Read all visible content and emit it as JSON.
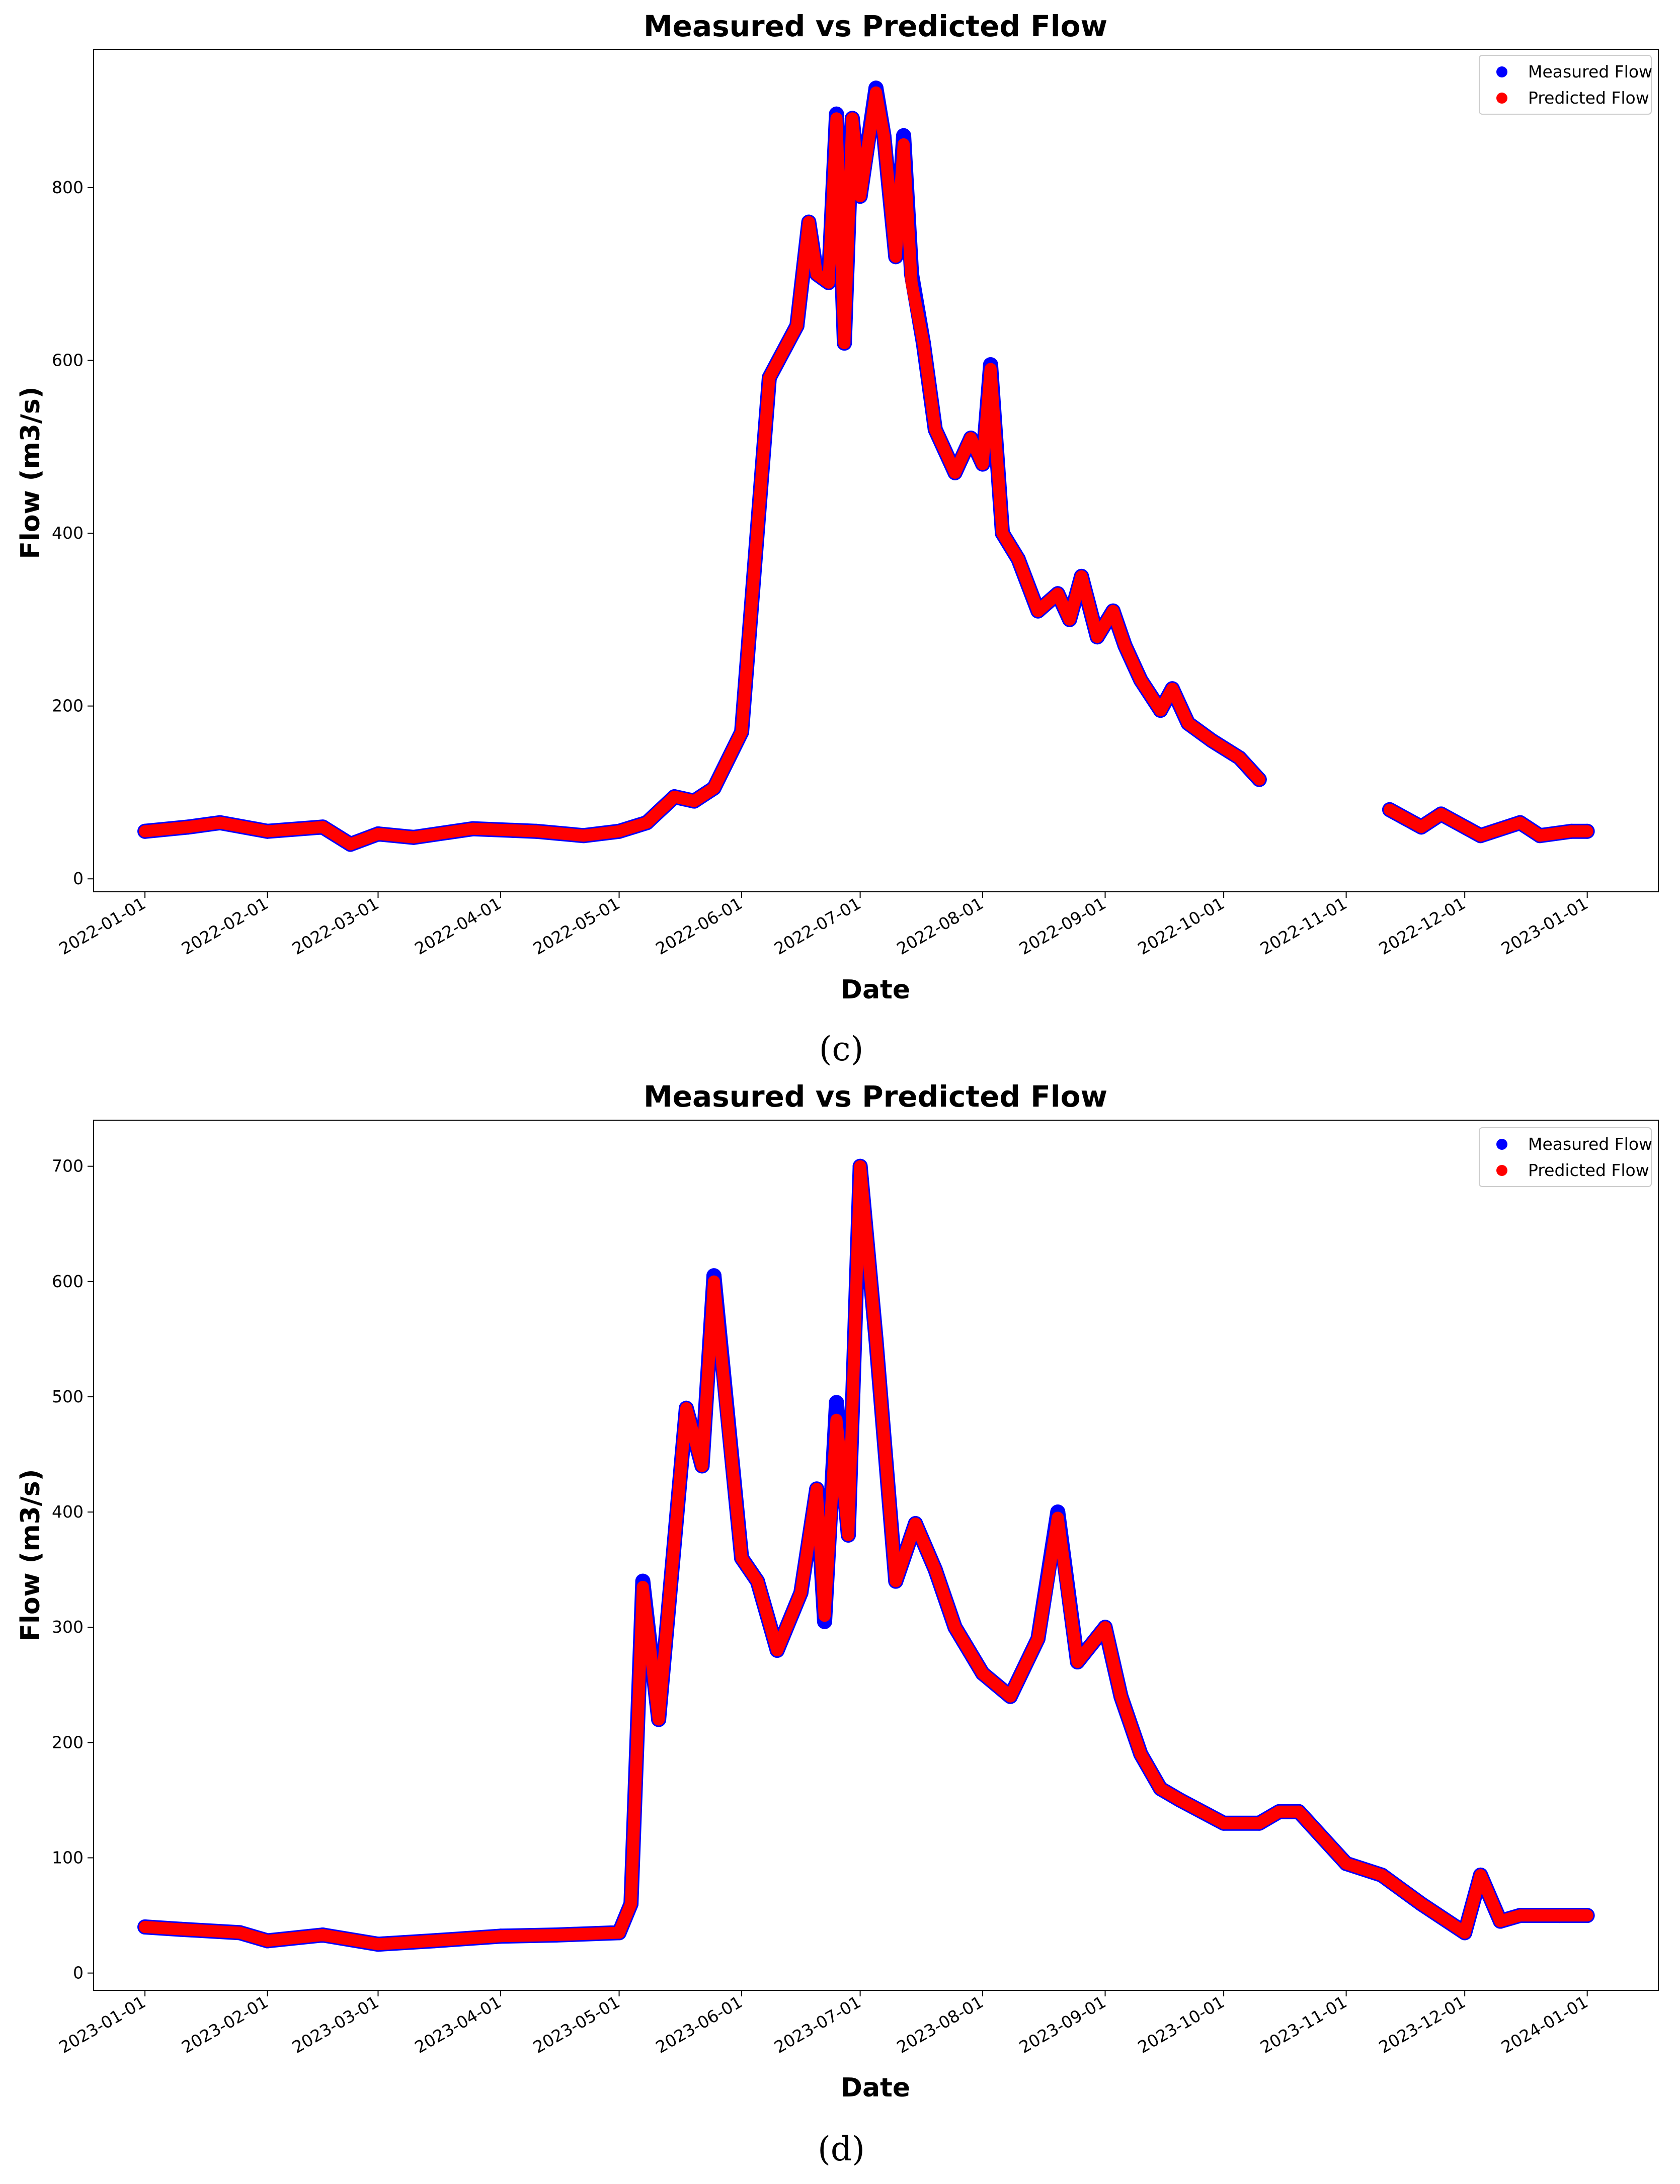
{
  "figure": {
    "panels": [
      {
        "caption": "(c)"
      },
      {
        "caption": "(d)"
      }
    ]
  },
  "colors": {
    "measured": "#0000ff",
    "predicted": "#ff0000"
  },
  "chart_data": [
    {
      "type": "scatter",
      "title": "Measured vs Predicted Flow",
      "xlabel": "Date",
      "ylabel": "Flow (m3/s)",
      "x_range": [
        "2021-12-19",
        "2023-01-19"
      ],
      "ylim": [
        -15,
        960
      ],
      "yticks": [
        0,
        200,
        400,
        600,
        800
      ],
      "xticks": [
        "2022-01-01",
        "2022-02-01",
        "2022-03-01",
        "2022-04-01",
        "2022-05-01",
        "2022-06-01",
        "2022-07-01",
        "2022-08-01",
        "2022-09-01",
        "2022-10-01",
        "2022-11-01",
        "2022-12-01",
        "2023-01-01"
      ],
      "legend": {
        "placement": "top-right",
        "entries": [
          "Measured Flow",
          "Predicted Flow"
        ]
      },
      "grid": false,
      "series": [
        {
          "name": "Measured Flow",
          "segments": [
            {
              "x": [
                "2022-01-01",
                "2022-01-12",
                "2022-01-20",
                "2022-02-01",
                "2022-02-15",
                "2022-02-22",
                "2022-03-01",
                "2022-03-10",
                "2022-03-25",
                "2022-04-10",
                "2022-04-22",
                "2022-05-01",
                "2022-05-08",
                "2022-05-15",
                "2022-05-20",
                "2022-05-25",
                "2022-06-01",
                "2022-06-08",
                "2022-06-15",
                "2022-06-18",
                "2022-06-20",
                "2022-06-23",
                "2022-06-25",
                "2022-06-27",
                "2022-06-29",
                "2022-07-01",
                "2022-07-05",
                "2022-07-07",
                "2022-07-10",
                "2022-07-12",
                "2022-07-14",
                "2022-07-17",
                "2022-07-20",
                "2022-07-25",
                "2022-07-29",
                "2022-08-01",
                "2022-08-03",
                "2022-08-06",
                "2022-08-10",
                "2022-08-15",
                "2022-08-20",
                "2022-08-23",
                "2022-08-26",
                "2022-08-30",
                "2022-09-03",
                "2022-09-06",
                "2022-09-10",
                "2022-09-15",
                "2022-09-18",
                "2022-09-22",
                "2022-09-28",
                "2022-10-05",
                "2022-10-10"
              ],
              "y": [
                55,
                60,
                65,
                55,
                60,
                40,
                52,
                48,
                58,
                55,
                50,
                55,
                65,
                95,
                90,
                105,
                170,
                580,
                640,
                760,
                700,
                690,
                885,
                620,
                880,
                790,
                915,
                860,
                720,
                860,
                700,
                620,
                520,
                470,
                510,
                480,
                595,
                400,
                370,
                310,
                330,
                300,
                350,
                280,
                310,
                270,
                230,
                195,
                220,
                180,
                160,
                140,
                115
              ]
            },
            {
              "x": [
                "2022-11-12",
                "2022-11-20",
                "2022-11-25",
                "2022-12-05",
                "2022-12-15",
                "2022-12-20",
                "2022-12-28",
                "2023-01-01"
              ],
              "y": [
                80,
                60,
                75,
                50,
                65,
                50,
                55,
                55
              ]
            }
          ]
        },
        {
          "name": "Predicted Flow",
          "segments": [
            {
              "x": [
                "2022-01-01",
                "2022-01-12",
                "2022-01-20",
                "2022-02-01",
                "2022-02-15",
                "2022-02-22",
                "2022-03-01",
                "2022-03-10",
                "2022-03-25",
                "2022-04-10",
                "2022-04-22",
                "2022-05-01",
                "2022-05-08",
                "2022-05-15",
                "2022-05-20",
                "2022-05-25",
                "2022-06-01",
                "2022-06-08",
                "2022-06-15",
                "2022-06-18",
                "2022-06-20",
                "2022-06-23",
                "2022-06-25",
                "2022-06-27",
                "2022-06-29",
                "2022-07-01",
                "2022-07-05",
                "2022-07-07",
                "2022-07-10",
                "2022-07-12",
                "2022-07-14",
                "2022-07-17",
                "2022-07-20",
                "2022-07-25",
                "2022-07-29",
                "2022-08-01",
                "2022-08-03",
                "2022-08-06",
                "2022-08-10",
                "2022-08-15",
                "2022-08-20",
                "2022-08-23",
                "2022-08-26",
                "2022-08-30",
                "2022-09-03",
                "2022-09-06",
                "2022-09-10",
                "2022-09-15",
                "2022-09-18",
                "2022-09-22",
                "2022-09-28",
                "2022-10-05",
                "2022-10-10"
              ],
              "y": [
                55,
                60,
                65,
                55,
                60,
                40,
                52,
                48,
                58,
                55,
                50,
                55,
                65,
                95,
                90,
                105,
                170,
                580,
                640,
                760,
                700,
                690,
                880,
                620,
                880,
                790,
                910,
                860,
                720,
                850,
                690,
                620,
                520,
                470,
                510,
                480,
                590,
                400,
                370,
                310,
                330,
                300,
                350,
                280,
                310,
                270,
                230,
                195,
                220,
                180,
                160,
                140,
                115
              ]
            },
            {
              "x": [
                "2022-11-12",
                "2022-11-20",
                "2022-11-25",
                "2022-12-05",
                "2022-12-15",
                "2022-12-20",
                "2022-12-28",
                "2023-01-01"
              ],
              "y": [
                80,
                60,
                75,
                50,
                65,
                50,
                55,
                55
              ]
            }
          ]
        }
      ]
    },
    {
      "type": "scatter",
      "title": "Measured vs Predicted Flow",
      "xlabel": "Date",
      "ylabel": "Flow (m3/s)",
      "x_range": [
        "2022-12-19",
        "2024-01-19"
      ],
      "ylim": [
        -15,
        740
      ],
      "yticks": [
        0,
        100,
        200,
        300,
        400,
        500,
        600,
        700
      ],
      "xticks": [
        "2023-01-01",
        "2023-02-01",
        "2023-03-01",
        "2023-04-01",
        "2023-05-01",
        "2023-06-01",
        "2023-07-01",
        "2023-08-01",
        "2023-09-01",
        "2023-10-01",
        "2023-11-01",
        "2023-12-01",
        "2024-01-01"
      ],
      "legend": {
        "placement": "top-right",
        "entries": [
          "Measured Flow",
          "Predicted Flow"
        ]
      },
      "grid": false,
      "series": [
        {
          "name": "Measured Flow",
          "segments": [
            {
              "x": [
                "2023-01-01",
                "2023-01-10",
                "2023-01-25",
                "2023-02-01",
                "2023-02-15",
                "2023-03-01",
                "2023-03-15",
                "2023-04-01",
                "2023-04-15",
                "2023-05-01",
                "2023-05-04",
                "2023-05-07",
                "2023-05-11",
                "2023-05-18",
                "2023-05-22",
                "2023-05-25",
                "2023-06-01",
                "2023-06-05",
                "2023-06-10",
                "2023-06-16",
                "2023-06-20",
                "2023-06-22",
                "2023-06-25",
                "2023-06-28",
                "2023-07-01",
                "2023-07-05",
                "2023-07-10",
                "2023-07-15",
                "2023-07-20",
                "2023-07-25",
                "2023-08-01",
                "2023-08-08",
                "2023-08-15",
                "2023-08-20",
                "2023-08-25",
                "2023-09-01",
                "2023-09-05",
                "2023-09-10",
                "2023-09-15",
                "2023-09-20",
                "2023-10-01",
                "2023-10-10",
                "2023-10-15",
                "2023-10-20",
                "2023-11-01",
                "2023-11-10",
                "2023-11-20",
                "2023-12-01",
                "2023-12-05",
                "2023-12-10",
                "2023-12-15",
                "2023-12-25",
                "2024-01-01"
              ],
              "y": [
                40,
                38,
                35,
                28,
                33,
                25,
                28,
                32,
                33,
                35,
                60,
                340,
                220,
                490,
                440,
                605,
                360,
                340,
                280,
                330,
                420,
                305,
                495,
                380,
                700,
                550,
                340,
                390,
                350,
                300,
                260,
                240,
                290,
                400,
                270,
                300,
                240,
                190,
                160,
                150,
                130,
                130,
                140,
                140,
                95,
                85,
                60,
                35,
                85,
                45,
                50,
                50,
                50
              ]
            }
          ]
        },
        {
          "name": "Predicted Flow",
          "segments": [
            {
              "x": [
                "2023-01-01",
                "2023-01-10",
                "2023-01-25",
                "2023-02-01",
                "2023-02-15",
                "2023-03-01",
                "2023-03-15",
                "2023-04-01",
                "2023-04-15",
                "2023-05-01",
                "2023-05-04",
                "2023-05-07",
                "2023-05-11",
                "2023-05-18",
                "2023-05-22",
                "2023-05-25",
                "2023-06-01",
                "2023-06-05",
                "2023-06-10",
                "2023-06-16",
                "2023-06-20",
                "2023-06-22",
                "2023-06-25",
                "2023-06-28",
                "2023-07-01",
                "2023-07-05",
                "2023-07-10",
                "2023-07-15",
                "2023-07-20",
                "2023-07-25",
                "2023-08-01",
                "2023-08-08",
                "2023-08-15",
                "2023-08-20",
                "2023-08-25",
                "2023-09-01",
                "2023-09-05",
                "2023-09-10",
                "2023-09-15",
                "2023-09-20",
                "2023-10-01",
                "2023-10-10",
                "2023-10-15",
                "2023-10-20",
                "2023-11-01",
                "2023-11-10",
                "2023-11-20",
                "2023-12-01",
                "2023-12-05",
                "2023-12-10",
                "2023-12-15",
                "2023-12-25",
                "2024-01-01"
              ],
              "y": [
                40,
                38,
                35,
                28,
                33,
                25,
                28,
                32,
                33,
                35,
                60,
                335,
                220,
                490,
                440,
                600,
                360,
                340,
                280,
                330,
                420,
                310,
                480,
                380,
                700,
                550,
                340,
                390,
                350,
                300,
                260,
                240,
                290,
                395,
                270,
                300,
                240,
                190,
                160,
                150,
                130,
                130,
                140,
                140,
                95,
                85,
                60,
                35,
                85,
                45,
                50,
                50,
                50
              ]
            }
          ]
        }
      ]
    }
  ]
}
